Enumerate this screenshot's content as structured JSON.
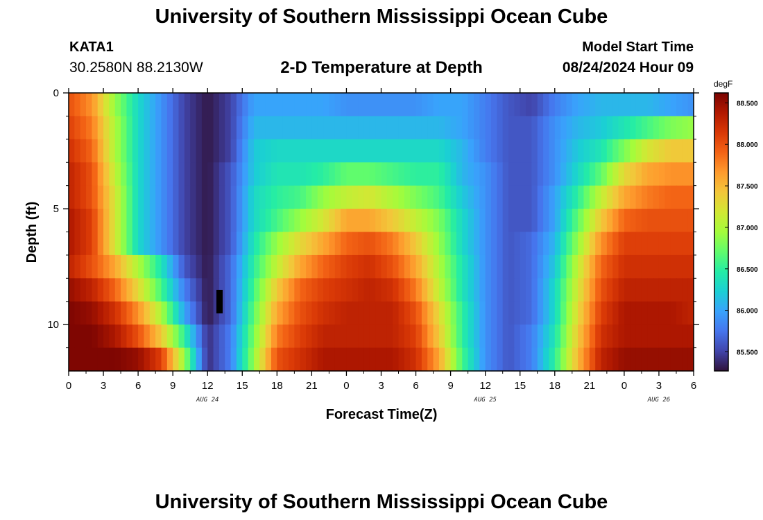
{
  "header": {
    "title": "University of Southern Mississippi Ocean Cube",
    "station_id": "KATA1",
    "coordinates": "30.2580N  88.2130W",
    "subtitle": "2-D Temperature at Depth",
    "model_start_label": "Model Start Time",
    "model_start_value": "08/24/2024 Hour 09"
  },
  "footer": {
    "title": "University of Southern Mississippi Ocean Cube"
  },
  "chart_data": {
    "type": "heatmap",
    "title": "2-D Temperature at Depth",
    "xlabel": "Forecast Time(Z)",
    "ylabel": "Depth (ft)",
    "x_tick_labels": [
      "0",
      "3",
      "6",
      "9",
      "12",
      "15",
      "18",
      "21",
      "0",
      "3",
      "6",
      "9",
      "12",
      "15",
      "18",
      "21",
      "0",
      "3",
      "6"
    ],
    "x_date_labels": [
      {
        "label": "AUG 24",
        "at_hour": 12
      },
      {
        "label": "AUG 25",
        "at_hour": 36
      },
      {
        "label": "AUG 26",
        "at_hour": 51
      }
    ],
    "x_range_hours": [
      0,
      54
    ],
    "y_ticks": [
      0,
      5,
      10
    ],
    "y_range": [
      0,
      12
    ],
    "colorbar": {
      "unit": "degF",
      "ticks": [
        "88.500",
        "88.000",
        "87.500",
        "87.000",
        "86.500",
        "86.000",
        "85.500"
      ],
      "range": [
        85.27,
        88.62
      ]
    },
    "grid": false,
    "n_depth_levels": 12,
    "time_keys": [
      0,
      2,
      4,
      6,
      8,
      10,
      12,
      14,
      16,
      18,
      20,
      22,
      24,
      26,
      28,
      30,
      32,
      34,
      36,
      38,
      40,
      42,
      44,
      46,
      48,
      50,
      52,
      54
    ],
    "temperature_degF": [
      [
        88.0,
        87.7,
        86.9,
        86.3,
        85.9,
        85.5,
        85.3,
        85.5,
        86.0,
        86.0,
        86.0,
        86.0,
        85.9,
        85.9,
        85.9,
        85.9,
        86.0,
        86.0,
        85.8,
        85.6,
        85.5,
        85.8,
        86.0,
        86.1,
        86.1,
        86.1,
        86.0,
        85.9
      ],
      [
        88.1,
        87.8,
        87.0,
        86.3,
        85.9,
        85.5,
        85.3,
        85.5,
        86.1,
        86.1,
        86.1,
        86.1,
        86.1,
        86.1,
        86.1,
        86.1,
        86.1,
        86.0,
        85.8,
        85.6,
        85.6,
        85.9,
        86.1,
        86.2,
        86.4,
        86.6,
        86.8,
        86.9
      ],
      [
        88.2,
        87.9,
        87.0,
        86.3,
        85.9,
        85.5,
        85.3,
        85.5,
        86.2,
        86.3,
        86.3,
        86.3,
        86.3,
        86.3,
        86.3,
        86.3,
        86.3,
        86.1,
        85.8,
        85.6,
        85.6,
        85.9,
        86.2,
        86.4,
        86.8,
        87.2,
        87.4,
        87.4
      ],
      [
        88.3,
        88.0,
        87.1,
        86.3,
        85.9,
        85.5,
        85.3,
        85.6,
        86.2,
        86.4,
        86.4,
        86.5,
        86.7,
        86.7,
        86.6,
        86.5,
        86.5,
        86.1,
        85.9,
        85.6,
        85.6,
        85.9,
        86.3,
        86.7,
        87.3,
        87.6,
        87.7,
        87.7
      ],
      [
        88.3,
        88.0,
        87.2,
        86.3,
        85.9,
        85.5,
        85.3,
        85.6,
        86.3,
        86.5,
        86.6,
        86.9,
        87.1,
        87.2,
        87.0,
        86.8,
        86.6,
        86.2,
        85.9,
        85.6,
        85.6,
        86.0,
        86.5,
        87.1,
        87.6,
        87.8,
        87.9,
        87.9
      ],
      [
        88.4,
        88.1,
        87.2,
        86.3,
        85.9,
        85.5,
        85.3,
        85.6,
        86.3,
        86.6,
        86.9,
        87.2,
        87.6,
        87.6,
        87.4,
        87.1,
        86.8,
        86.3,
        85.9,
        85.6,
        85.6,
        86.0,
        86.7,
        87.4,
        87.9,
        88.0,
        88.0,
        88.0
      ],
      [
        88.4,
        88.1,
        87.2,
        86.3,
        85.9,
        85.5,
        85.3,
        85.6,
        86.4,
        86.9,
        87.3,
        87.6,
        87.9,
        88.0,
        87.8,
        87.4,
        86.9,
        86.3,
        85.9,
        85.6,
        85.7,
        86.1,
        86.9,
        87.7,
        88.1,
        88.1,
        88.1,
        88.1
      ],
      [
        88.3,
        88.0,
        87.6,
        87.0,
        86.4,
        85.6,
        85.3,
        85.7,
        86.5,
        87.1,
        87.6,
        87.9,
        88.1,
        88.2,
        88.0,
        87.6,
        87.0,
        86.4,
        85.9,
        85.6,
        85.7,
        86.2,
        87.1,
        87.9,
        88.2,
        88.2,
        88.2,
        88.2
      ],
      [
        88.5,
        88.3,
        87.9,
        87.3,
        86.6,
        85.8,
        85.3,
        85.7,
        86.6,
        87.4,
        87.9,
        88.1,
        88.2,
        88.3,
        88.2,
        87.8,
        87.1,
        86.4,
        85.9,
        85.6,
        85.7,
        86.3,
        87.2,
        88.0,
        88.3,
        88.3,
        88.3,
        88.3
      ],
      [
        88.6,
        88.5,
        88.2,
        87.7,
        87.0,
        86.0,
        85.3,
        85.7,
        86.7,
        87.6,
        88.0,
        88.2,
        88.3,
        88.3,
        88.3,
        88.0,
        87.3,
        86.5,
        85.9,
        85.6,
        85.7,
        86.3,
        87.3,
        88.1,
        88.4,
        88.4,
        88.4,
        88.3
      ],
      [
        88.6,
        88.6,
        88.4,
        88.0,
        87.4,
        86.5,
        85.4,
        85.8,
        86.8,
        87.8,
        88.1,
        88.3,
        88.3,
        88.3,
        88.3,
        88.1,
        87.4,
        86.5,
        85.9,
        85.6,
        85.8,
        86.4,
        87.4,
        88.2,
        88.4,
        88.4,
        88.4,
        88.4
      ],
      [
        88.6,
        88.6,
        88.6,
        88.5,
        88.1,
        86.9,
        85.4,
        85.8,
        86.9,
        88.0,
        88.2,
        88.4,
        88.4,
        88.4,
        88.4,
        88.2,
        87.6,
        86.6,
        85.9,
        85.6,
        85.8,
        86.5,
        87.5,
        88.3,
        88.5,
        88.5,
        88.5,
        88.5
      ]
    ],
    "colormap": [
      "#30123b",
      "#4145ab",
      "#4675ed",
      "#39a2fc",
      "#1bcfd4",
      "#24eca6",
      "#61fc6c",
      "#a4fc3b",
      "#d1e834",
      "#f3c63a",
      "#fe9b2d",
      "#f36315",
      "#d93806",
      "#b11901",
      "#7a0402"
    ]
  }
}
